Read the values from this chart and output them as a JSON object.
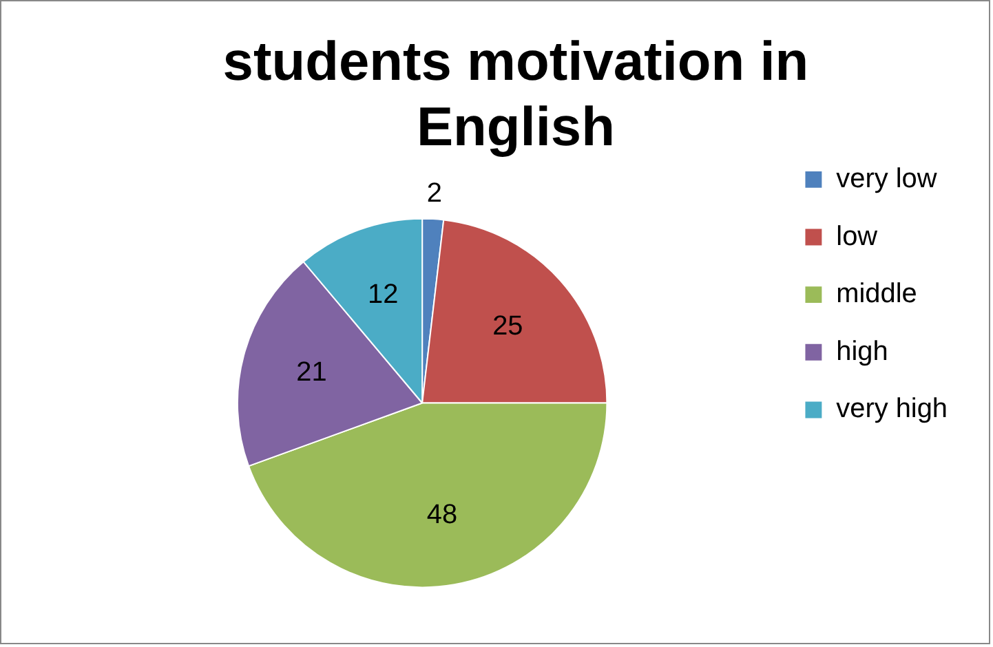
{
  "chart_data": {
    "type": "pie",
    "title": "students motivation in English",
    "categories": [
      "very low",
      "low",
      "middle",
      "high",
      "very high"
    ],
    "values": [
      2,
      25,
      48,
      21,
      12
    ],
    "colors": [
      "#4f81bd",
      "#c0504d",
      "#9bbb59",
      "#8064a2",
      "#4bacc6"
    ],
    "data_labels": true,
    "legend": "right"
  }
}
